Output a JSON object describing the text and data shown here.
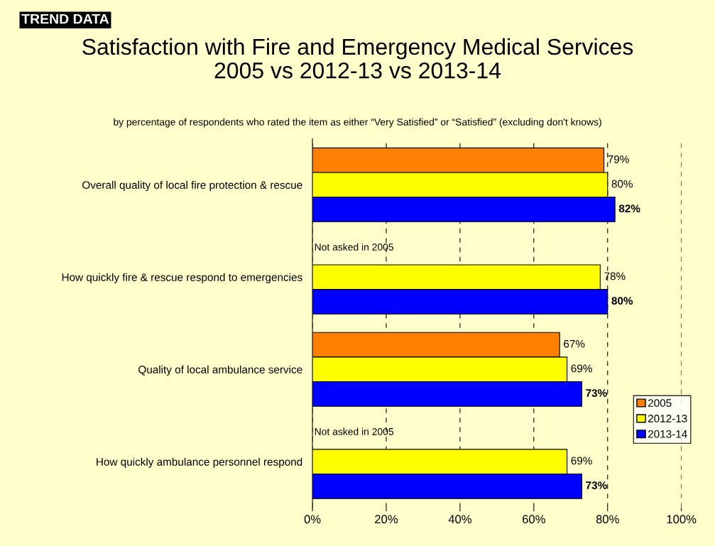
{
  "chart_data": {
    "type": "bar",
    "orientation": "horizontal",
    "title": "Satisfaction with Fire and Emergency Medical Services\n2005 vs 2012-13 vs 2013-14",
    "subtitle": "by percentage of respondents who rated the item as either “Very Satisfied” or “Satisfied” (excluding don't knows)",
    "categories": [
      "Overall quality of local fire protection & rescue",
      "How quickly fire & rescue respond to emergencies",
      "Quality of local ambulance service",
      "How quickly ambulance personnel respond"
    ],
    "series": [
      {
        "name": "2005",
        "color": "#ff8000",
        "values": [
          79,
          null,
          67,
          null
        ],
        "value_labels": [
          "79%",
          null,
          "67%",
          null
        ]
      },
      {
        "name": "2012-13",
        "color": "#ffff00",
        "values": [
          80,
          78,
          69,
          69
        ],
        "value_labels": [
          "80%",
          "78%",
          "69%",
          "69%"
        ]
      },
      {
        "name": "2013-14",
        "color": "#0000ff",
        "values": [
          82,
          80,
          73,
          73
        ],
        "value_labels": [
          "82%",
          "80%",
          "73%",
          "73%"
        ]
      }
    ],
    "xlim": [
      0,
      100
    ],
    "xticks": [
      {
        "value": 0,
        "label": "0%"
      },
      {
        "value": 20,
        "label": "20%"
      },
      {
        "value": 40,
        "label": "40%"
      },
      {
        "value": 60,
        "label": "60%"
      },
      {
        "value": 80,
        "label": "80%"
      },
      {
        "value": 100,
        "label": "100%"
      }
    ],
    "grid": "x",
    "legend": "bottom right",
    "annotations": [
      "TREND DATA",
      {
        "text": "Not asked in 2005",
        "x": 0,
        "y": "How quickly fire & rescue respond to emergencies"
      },
      {
        "text": "Not asked in 2005",
        "x": 0,
        "y": "How quickly ambulance personnel respond"
      }
    ]
  }
}
